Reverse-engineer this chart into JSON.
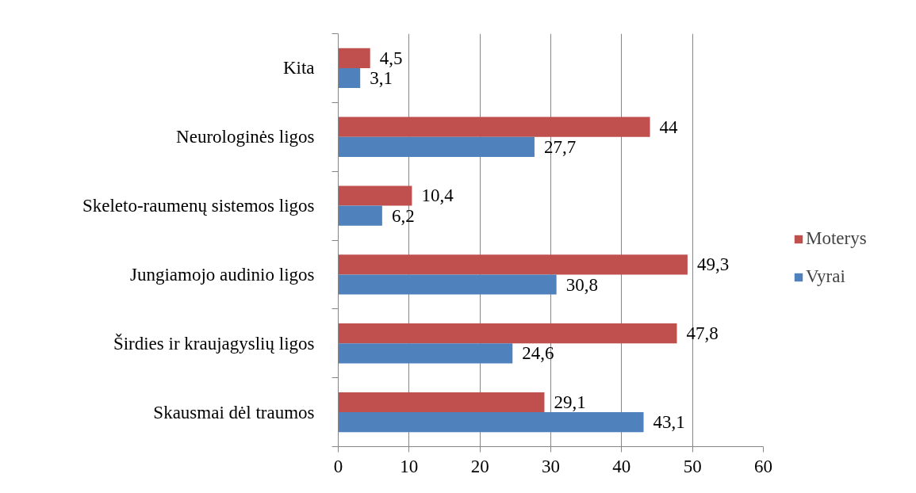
{
  "chart_data": {
    "type": "bar",
    "orientation": "horizontal",
    "categories": [
      "Kita",
      "Neurologinės ligos",
      "Skeleto-raumenų sistemos ligos",
      "Jungiamojo audinio ligos",
      "Širdies ir kraujagyslių ligos",
      "Skausmai dėl traumos"
    ],
    "series": [
      {
        "name": "Moterys",
        "color": "#c0504d",
        "values": [
          4.5,
          44,
          10.4,
          49.3,
          47.8,
          29.1
        ],
        "value_labels": [
          "4,5",
          "44",
          "10,4",
          "49,3",
          "47,8",
          "29,1"
        ]
      },
      {
        "name": "Vyrai",
        "color": "#4f81bd",
        "values": [
          3.1,
          27.7,
          6.2,
          30.8,
          24.6,
          43.1
        ],
        "value_labels": [
          "3,1",
          "27,7",
          "6,2",
          "30,8",
          "24,6",
          "43,1"
        ]
      }
    ],
    "xlim": [
      0,
      60
    ],
    "xticks": [
      0,
      10,
      20,
      30,
      40,
      50,
      60
    ],
    "grid": "x",
    "legend": "right"
  }
}
